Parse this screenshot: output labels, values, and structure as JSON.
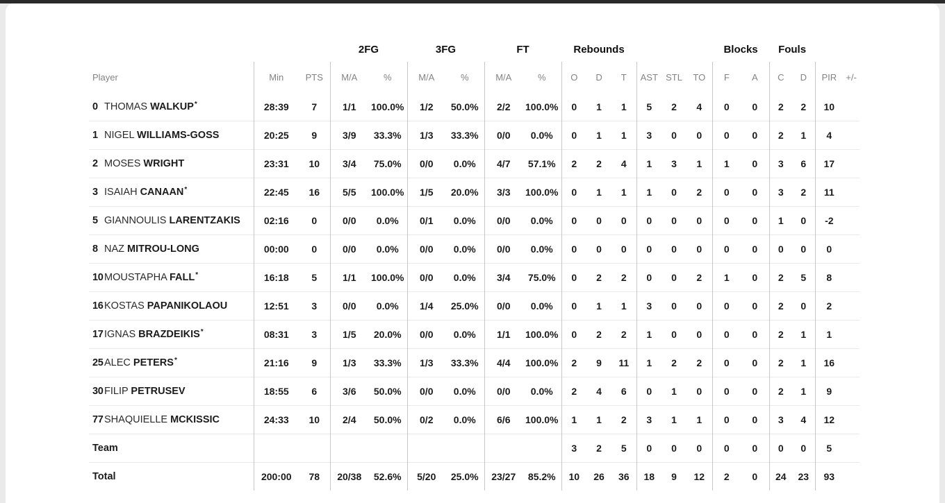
{
  "theme": {
    "page_background": "#eaeaea",
    "top_bar_color": "#2a2a2a",
    "card_color": "#ffffff",
    "vertical_divider_color": "#c7c7c7",
    "row_divider_color": "#e9e9e9",
    "header_text_color": "#838383",
    "data_text_color": "#1b1b1b"
  },
  "table": {
    "player_header": "Player",
    "groups": {
      "fg2": "2FG",
      "fg3": "3FG",
      "ft": "FT",
      "rebounds": "Rebounds",
      "blocks": "Blocks",
      "fouls": "Fouls"
    },
    "stat_headers": [
      "Min",
      "PTS",
      "M/A",
      "%",
      "M/A",
      "%",
      "M/A",
      "%",
      "O",
      "D",
      "T",
      "AST",
      "STL",
      "TO",
      "F",
      "A",
      "C",
      "D",
      "PIR",
      "+/-"
    ],
    "players": [
      {
        "num": "0",
        "first": "THOMAS",
        "last": "WALKUP",
        "starter": true,
        "min": "28:39",
        "pts": "7",
        "fg2ma": "1/1",
        "fg2pct": "100.0%",
        "fg3ma": "1/2",
        "fg3pct": "50.0%",
        "ftma": "2/2",
        "ftpct": "100.0%",
        "o": "0",
        "d": "1",
        "t": "1",
        "ast": "5",
        "stl": "2",
        "to": "4",
        "f": "0",
        "a": "0",
        "c": "2",
        "cd": "2",
        "pir": "10",
        "pm": ""
      },
      {
        "num": "1",
        "first": "NIGEL",
        "last": "WILLIAMS-GOSS",
        "starter": false,
        "min": "20:25",
        "pts": "9",
        "fg2ma": "3/9",
        "fg2pct": "33.3%",
        "fg3ma": "1/3",
        "fg3pct": "33.3%",
        "ftma": "0/0",
        "ftpct": "0.0%",
        "o": "0",
        "d": "1",
        "t": "1",
        "ast": "3",
        "stl": "0",
        "to": "0",
        "f": "0",
        "a": "0",
        "c": "2",
        "cd": "1",
        "pir": "4",
        "pm": ""
      },
      {
        "num": "2",
        "first": "MOSES",
        "last": "WRIGHT",
        "starter": false,
        "min": "23:31",
        "pts": "10",
        "fg2ma": "3/4",
        "fg2pct": "75.0%",
        "fg3ma": "0/0",
        "fg3pct": "0.0%",
        "ftma": "4/7",
        "ftpct": "57.1%",
        "o": "2",
        "d": "2",
        "t": "4",
        "ast": "1",
        "stl": "3",
        "to": "1",
        "f": "1",
        "a": "0",
        "c": "3",
        "cd": "6",
        "pir": "17",
        "pm": ""
      },
      {
        "num": "3",
        "first": "ISAIAH",
        "last": "CANAAN",
        "starter": true,
        "min": "22:45",
        "pts": "16",
        "fg2ma": "5/5",
        "fg2pct": "100.0%",
        "fg3ma": "1/5",
        "fg3pct": "20.0%",
        "ftma": "3/3",
        "ftpct": "100.0%",
        "o": "0",
        "d": "1",
        "t": "1",
        "ast": "1",
        "stl": "0",
        "to": "2",
        "f": "0",
        "a": "0",
        "c": "3",
        "cd": "2",
        "pir": "11",
        "pm": ""
      },
      {
        "num": "5",
        "first": "GIANNOULIS",
        "last": "LARENTZAKIS",
        "starter": false,
        "min": "02:16",
        "pts": "0",
        "fg2ma": "0/0",
        "fg2pct": "0.0%",
        "fg3ma": "0/1",
        "fg3pct": "0.0%",
        "ftma": "0/0",
        "ftpct": "0.0%",
        "o": "0",
        "d": "0",
        "t": "0",
        "ast": "0",
        "stl": "0",
        "to": "0",
        "f": "0",
        "a": "0",
        "c": "1",
        "cd": "0",
        "pir": "-2",
        "pm": ""
      },
      {
        "num": "8",
        "first": "NAZ",
        "last": "MITROU-LONG",
        "starter": false,
        "min": "00:00",
        "pts": "0",
        "fg2ma": "0/0",
        "fg2pct": "0.0%",
        "fg3ma": "0/0",
        "fg3pct": "0.0%",
        "ftma": "0/0",
        "ftpct": "0.0%",
        "o": "0",
        "d": "0",
        "t": "0",
        "ast": "0",
        "stl": "0",
        "to": "0",
        "f": "0",
        "a": "0",
        "c": "0",
        "cd": "0",
        "pir": "0",
        "pm": ""
      },
      {
        "num": "10",
        "first": "MOUSTAPHA",
        "last": "FALL",
        "starter": true,
        "min": "16:18",
        "pts": "5",
        "fg2ma": "1/1",
        "fg2pct": "100.0%",
        "fg3ma": "0/0",
        "fg3pct": "0.0%",
        "ftma": "3/4",
        "ftpct": "75.0%",
        "o": "0",
        "d": "2",
        "t": "2",
        "ast": "0",
        "stl": "0",
        "to": "2",
        "f": "1",
        "a": "0",
        "c": "2",
        "cd": "5",
        "pir": "8",
        "pm": ""
      },
      {
        "num": "16",
        "first": "KOSTAS",
        "last": "PAPANIKOLAOU",
        "starter": false,
        "min": "12:51",
        "pts": "3",
        "fg2ma": "0/0",
        "fg2pct": "0.0%",
        "fg3ma": "1/4",
        "fg3pct": "25.0%",
        "ftma": "0/0",
        "ftpct": "0.0%",
        "o": "0",
        "d": "1",
        "t": "1",
        "ast": "3",
        "stl": "0",
        "to": "0",
        "f": "0",
        "a": "0",
        "c": "2",
        "cd": "0",
        "pir": "2",
        "pm": ""
      },
      {
        "num": "17",
        "first": "IGNAS",
        "last": "BRAZDEIKIS",
        "starter": true,
        "min": "08:31",
        "pts": "3",
        "fg2ma": "1/5",
        "fg2pct": "20.0%",
        "fg3ma": "0/0",
        "fg3pct": "0.0%",
        "ftma": "1/1",
        "ftpct": "100.0%",
        "o": "0",
        "d": "2",
        "t": "2",
        "ast": "1",
        "stl": "0",
        "to": "0",
        "f": "0",
        "a": "0",
        "c": "2",
        "cd": "1",
        "pir": "1",
        "pm": ""
      },
      {
        "num": "25",
        "first": "ALEC",
        "last": "PETERS",
        "starter": true,
        "min": "21:16",
        "pts": "9",
        "fg2ma": "1/3",
        "fg2pct": "33.3%",
        "fg3ma": "1/3",
        "fg3pct": "33.3%",
        "ftma": "4/4",
        "ftpct": "100.0%",
        "o": "2",
        "d": "9",
        "t": "11",
        "ast": "1",
        "stl": "2",
        "to": "2",
        "f": "0",
        "a": "0",
        "c": "2",
        "cd": "1",
        "pir": "16",
        "pm": ""
      },
      {
        "num": "30",
        "first": "FILIP",
        "last": "PETRUSEV",
        "starter": false,
        "min": "18:55",
        "pts": "6",
        "fg2ma": "3/6",
        "fg2pct": "50.0%",
        "fg3ma": "0/0",
        "fg3pct": "0.0%",
        "ftma": "0/0",
        "ftpct": "0.0%",
        "o": "2",
        "d": "4",
        "t": "6",
        "ast": "0",
        "stl": "1",
        "to": "0",
        "f": "0",
        "a": "0",
        "c": "2",
        "cd": "1",
        "pir": "9",
        "pm": ""
      },
      {
        "num": "77",
        "first": "SHAQUIELLE",
        "last": "MCKISSIC",
        "starter": false,
        "min": "24:33",
        "pts": "10",
        "fg2ma": "2/4",
        "fg2pct": "50.0%",
        "fg3ma": "0/2",
        "fg3pct": "0.0%",
        "ftma": "6/6",
        "ftpct": "100.0%",
        "o": "1",
        "d": "1",
        "t": "2",
        "ast": "3",
        "stl": "1",
        "to": "1",
        "f": "0",
        "a": "0",
        "c": "3",
        "cd": "4",
        "pir": "12",
        "pm": ""
      }
    ],
    "team_row": {
      "label": "Team",
      "min": "",
      "pts": "",
      "fg2ma": "",
      "fg2pct": "",
      "fg3ma": "",
      "fg3pct": "",
      "ftma": "",
      "ftpct": "",
      "o": "3",
      "d": "2",
      "t": "5",
      "ast": "0",
      "stl": "0",
      "to": "0",
      "f": "0",
      "a": "0",
      "c": "0",
      "cd": "0",
      "pir": "5",
      "pm": ""
    },
    "total_row": {
      "label": "Total",
      "min": "200:00",
      "pts": "78",
      "fg2ma": "20/38",
      "fg2pct": "52.6%",
      "fg3ma": "5/20",
      "fg3pct": "25.0%",
      "ftma": "23/27",
      "ftpct": "85.2%",
      "o": "10",
      "d": "26",
      "t": "36",
      "ast": "18",
      "stl": "9",
      "to": "12",
      "f": "2",
      "a": "0",
      "c": "24",
      "cd": "23",
      "pir": "93",
      "pm": ""
    }
  }
}
